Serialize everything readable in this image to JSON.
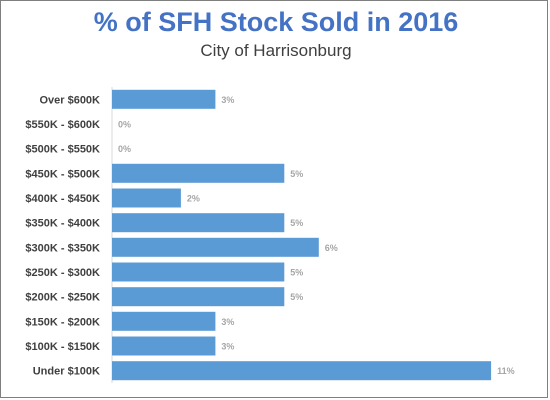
{
  "chart_data": {
    "type": "bar",
    "orientation": "horizontal",
    "title": "% of SFH Stock Sold in 2016",
    "subtitle": "City of Harrisonburg",
    "categories": [
      "Over $600K",
      "$550K - $600K",
      "$500K - $550K",
      "$450K - $500K",
      "$400K - $450K",
      "$350K - $400K",
      "$300K - $350K",
      "$250K - $300K",
      "$200K - $250K",
      "$150K - $200K",
      "$100K - $150K",
      "Under $100K"
    ],
    "values": [
      3,
      0,
      0,
      5,
      2,
      5,
      6,
      5,
      5,
      3,
      3,
      11
    ],
    "data_labels": [
      "3%",
      "0%",
      "0%",
      "5%",
      "2%",
      "5%",
      "6%",
      "5%",
      "5%",
      "3%",
      "3%",
      "11%"
    ],
    "unit": "%",
    "xlim": [
      0,
      11.2
    ],
    "grid": false,
    "legend": "none",
    "colors": {
      "bar": "#5b9bd5",
      "title": "#4472c4",
      "category_text": "#404040",
      "data_label": "#a6a6a6"
    }
  }
}
